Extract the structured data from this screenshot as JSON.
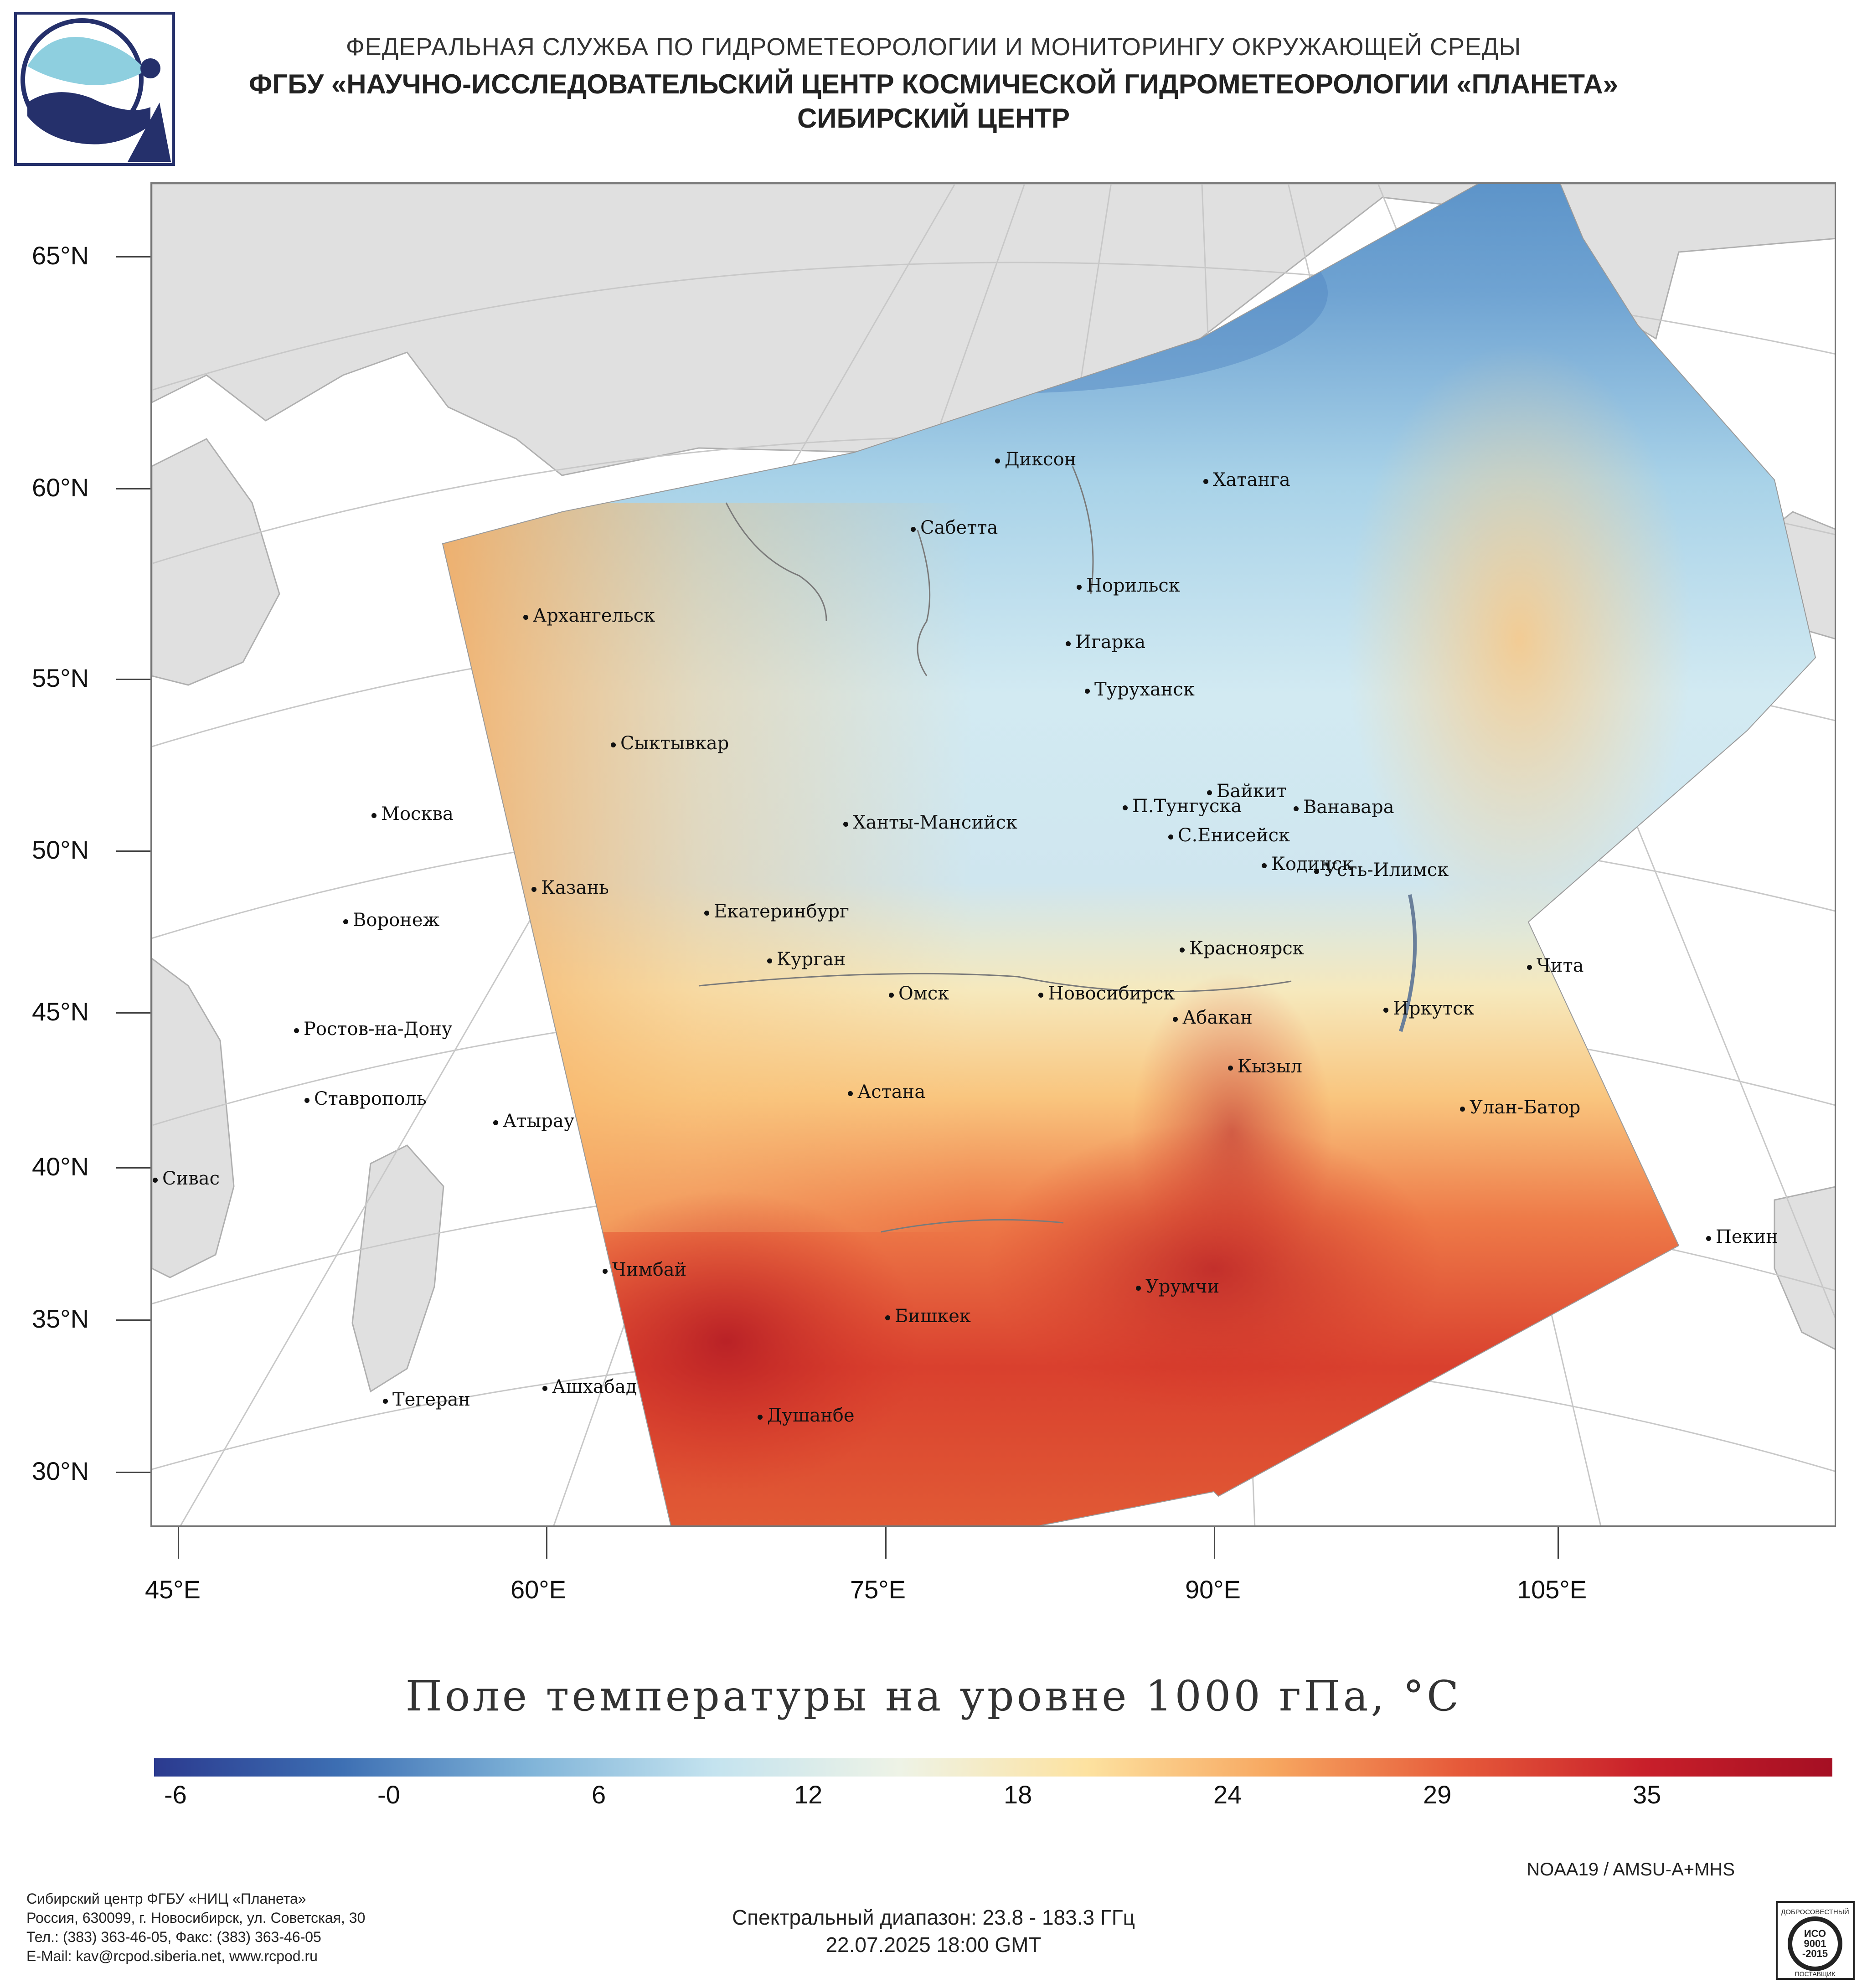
{
  "header": {
    "line1": "ФЕДЕРАЛЬНАЯ СЛУЖБА ПО ГИДРОМЕТЕОРОЛОГИИ И МОНИТОРИНГУ ОКРУЖАЮЩЕЙ СРЕДЫ",
    "line2": "ФГБУ «НАУЧНО-ИССЛЕДОВАТЕЛЬСКИЙ ЦЕНТР КОСМИЧЕСКОЙ ГИДРОМЕТЕОРОЛОГИИ «ПЛАНЕТА»",
    "line3": "СИБИРСКИЙ ЦЕНТР"
  },
  "map": {
    "lat_labels": [
      "65°N",
      "60°N",
      "55°N",
      "50°N",
      "45°N",
      "40°N",
      "35°N",
      "30°N"
    ],
    "lon_labels": [
      "45°E",
      "60°E",
      "75°E",
      "90°E",
      "105°E"
    ],
    "cities": [
      "Диксон",
      "Хатанга",
      "Сабетта",
      "Норильск",
      "Архангельск",
      "Игарка",
      "Туруханск",
      "Сыктывкар",
      "Байкит",
      "П.Тунгуска",
      "Ванавара",
      "Москва",
      "Ханты-Мансийск",
      "С.Енисейск",
      "Кодинск",
      "Усть-Илимск",
      "Казань",
      "Екатеринбург",
      "Воронеж",
      "Курган",
      "Красноярск",
      "Чита",
      "Омск",
      "Новосибирск",
      "Иркутск",
      "Абакан",
      "Ростов-на-Дону",
      "Кызыл",
      "Ставрополь",
      "Астана",
      "Улан-Батор",
      "Атырау",
      "Сивас",
      "Пекин",
      "Чимбай",
      "Урумчи",
      "Бишкек",
      "Ашхабад",
      "Тегеран",
      "Душанбе"
    ],
    "colors": {
      "cold": "#2c4f9c",
      "cool": "#a8d4e8",
      "neutral": "#f5f0d6",
      "warm": "#f6b463",
      "hot": "#d63427",
      "land_outside": "#e0e0e0"
    }
  },
  "product": {
    "title": "Поле температуры на уровне 1000 гПа, °C"
  },
  "colorbar": {
    "ticks": [
      "-6",
      "-0",
      "6",
      "12",
      "18",
      "24",
      "29",
      "35"
    ],
    "stops": [
      "#2b3a8f",
      "#3d6fb3",
      "#7fb3d8",
      "#c4e3ef",
      "#eef3e6",
      "#fde2a0",
      "#f7a760",
      "#e65a3a",
      "#c81f2a",
      "#a50f23"
    ]
  },
  "footer": {
    "org_line1": "Сибирский центр ФГБУ «НИЦ «Планета»",
    "org_line2": "Россия, 630099, г. Новосибирск, ул. Советская, 30",
    "org_line3": "Тел.: (383) 363-46-05, Факс: (383) 363-46-05",
    "org_line4": "E-Mail: kav@rcpod.siberia.net, www.rcpod.ru",
    "satellite": "NOAA19 / AMSU-A+MHS",
    "spectral": "Спектральный диапазон: 23.8 - 183.3 ГГц",
    "datetime": "22.07.2025 18:00 GMT",
    "iso_badge_top": "ДОБРОСОВЕСТНЫЙ",
    "iso_badge_mid1": "ИСО",
    "iso_badge_mid2": "9001",
    "iso_badge_mid3": "-2015",
    "iso_badge_bottom": "ПОСТАВЩИК"
  }
}
